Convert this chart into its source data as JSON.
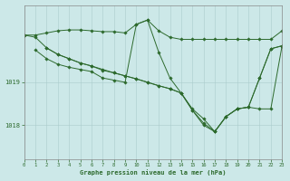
{
  "title": "Graphe pression niveau de la mer (hPa)",
  "bg_color": "#cce8e8",
  "line_color": "#2d6a2d",
  "grid_color": "#aacccc",
  "xlim": [
    0,
    23
  ],
  "ylim": [
    1017.2,
    1020.8
  ],
  "yticks": [
    1018,
    1019
  ],
  "xticks": [
    0,
    1,
    2,
    3,
    4,
    5,
    6,
    7,
    8,
    9,
    10,
    11,
    12,
    13,
    14,
    15,
    16,
    17,
    18,
    19,
    20,
    21,
    22,
    23
  ],
  "s1_x": [
    0,
    1,
    2,
    3,
    4,
    5,
    6,
    7,
    8,
    9,
    10,
    11,
    12,
    13,
    14,
    15,
    16,
    17,
    18,
    19,
    20,
    21,
    22,
    23
  ],
  "s1_y": [
    1020.1,
    1020.1,
    1020.15,
    1020.2,
    1020.22,
    1020.22,
    1020.2,
    1020.18,
    1020.18,
    1020.15,
    1020.35,
    1020.45,
    1020.2,
    1020.05,
    1020.0,
    1020.0,
    1020.0,
    1020.0,
    1020.0,
    1020.0,
    1020.0,
    1020.0,
    1020.0,
    1020.2
  ],
  "s2_x": [
    0,
    1,
    2,
    3,
    4,
    5,
    6,
    7,
    8,
    9,
    10,
    11,
    12,
    13,
    14,
    15,
    16,
    17,
    18,
    19,
    20,
    21,
    22,
    23
  ],
  "s2_y": [
    1020.1,
    1020.05,
    1019.8,
    1019.65,
    1019.55,
    1019.45,
    1019.38,
    1019.3,
    1019.22,
    1019.15,
    1019.08,
    1019.0,
    1018.92,
    1018.85,
    1018.75,
    1018.35,
    1018.0,
    1017.85,
    1018.2,
    1018.38,
    1018.42,
    1019.1,
    1019.78,
    1019.85
  ],
  "s3_x": [
    1,
    2,
    3,
    4,
    5,
    6,
    7,
    8,
    9,
    10,
    11,
    12,
    13,
    14,
    15,
    16,
    17,
    18,
    19,
    20,
    21,
    22,
    23
  ],
  "s3_y": [
    1019.75,
    1019.55,
    1019.42,
    1019.35,
    1019.3,
    1019.25,
    1019.1,
    1019.05,
    1019.0,
    1020.35,
    1020.45,
    1019.7,
    1019.1,
    1018.75,
    1018.35,
    1018.05,
    1017.85,
    1018.2,
    1018.38,
    1018.42,
    1019.1,
    1019.78,
    1019.85
  ],
  "s4_x": [
    2,
    3,
    4,
    5,
    6,
    7,
    8,
    9,
    10,
    11,
    12,
    13,
    14,
    15,
    16,
    17,
    18,
    19,
    20,
    21,
    22,
    23
  ],
  "s4_y": [
    1019.8,
    1019.65,
    1019.55,
    1019.45,
    1019.38,
    1019.28,
    1019.22,
    1019.15,
    1019.08,
    1019.0,
    1018.92,
    1018.85,
    1018.75,
    1018.38,
    1018.15,
    1017.85,
    1018.2,
    1018.38,
    1018.42,
    1018.38,
    1018.38,
    1019.85
  ]
}
